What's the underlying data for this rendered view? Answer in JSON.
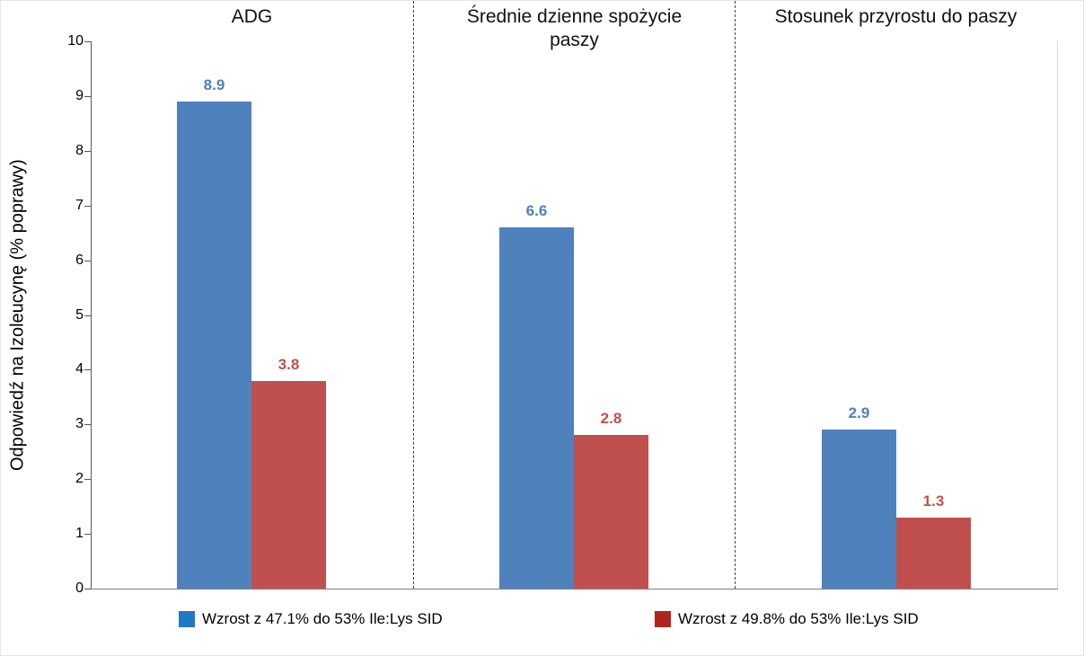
{
  "chart_data": {
    "type": "bar",
    "title": "",
    "xlabel": "",
    "ylabel": "Odpowiedź na Izoleucynę (% poprawy)",
    "ylim": [
      0,
      10
    ],
    "ytick_step": 1,
    "grid": false,
    "legend_position": "bottom",
    "panel_separators": "dashed",
    "categories": [
      "ADG",
      "Średnie dzienne spożycie paszy",
      "Stosunek przyrostu do paszy"
    ],
    "series": [
      {
        "name": "Wzrost z 47.1% do 53% Ile:Lys SID",
        "color": "#4F81BD",
        "legend_color": "#1F7AC4",
        "label_color": "#4F81BD",
        "values": [
          8.9,
          6.6,
          2.9
        ]
      },
      {
        "name": "Wzrost z 49.8% do 53% Ile:Lys SID",
        "color": "#C0504D",
        "legend_color": "#B1241C",
        "label_color": "#C0504D",
        "values": [
          3.8,
          2.8,
          1.3
        ]
      }
    ]
  }
}
